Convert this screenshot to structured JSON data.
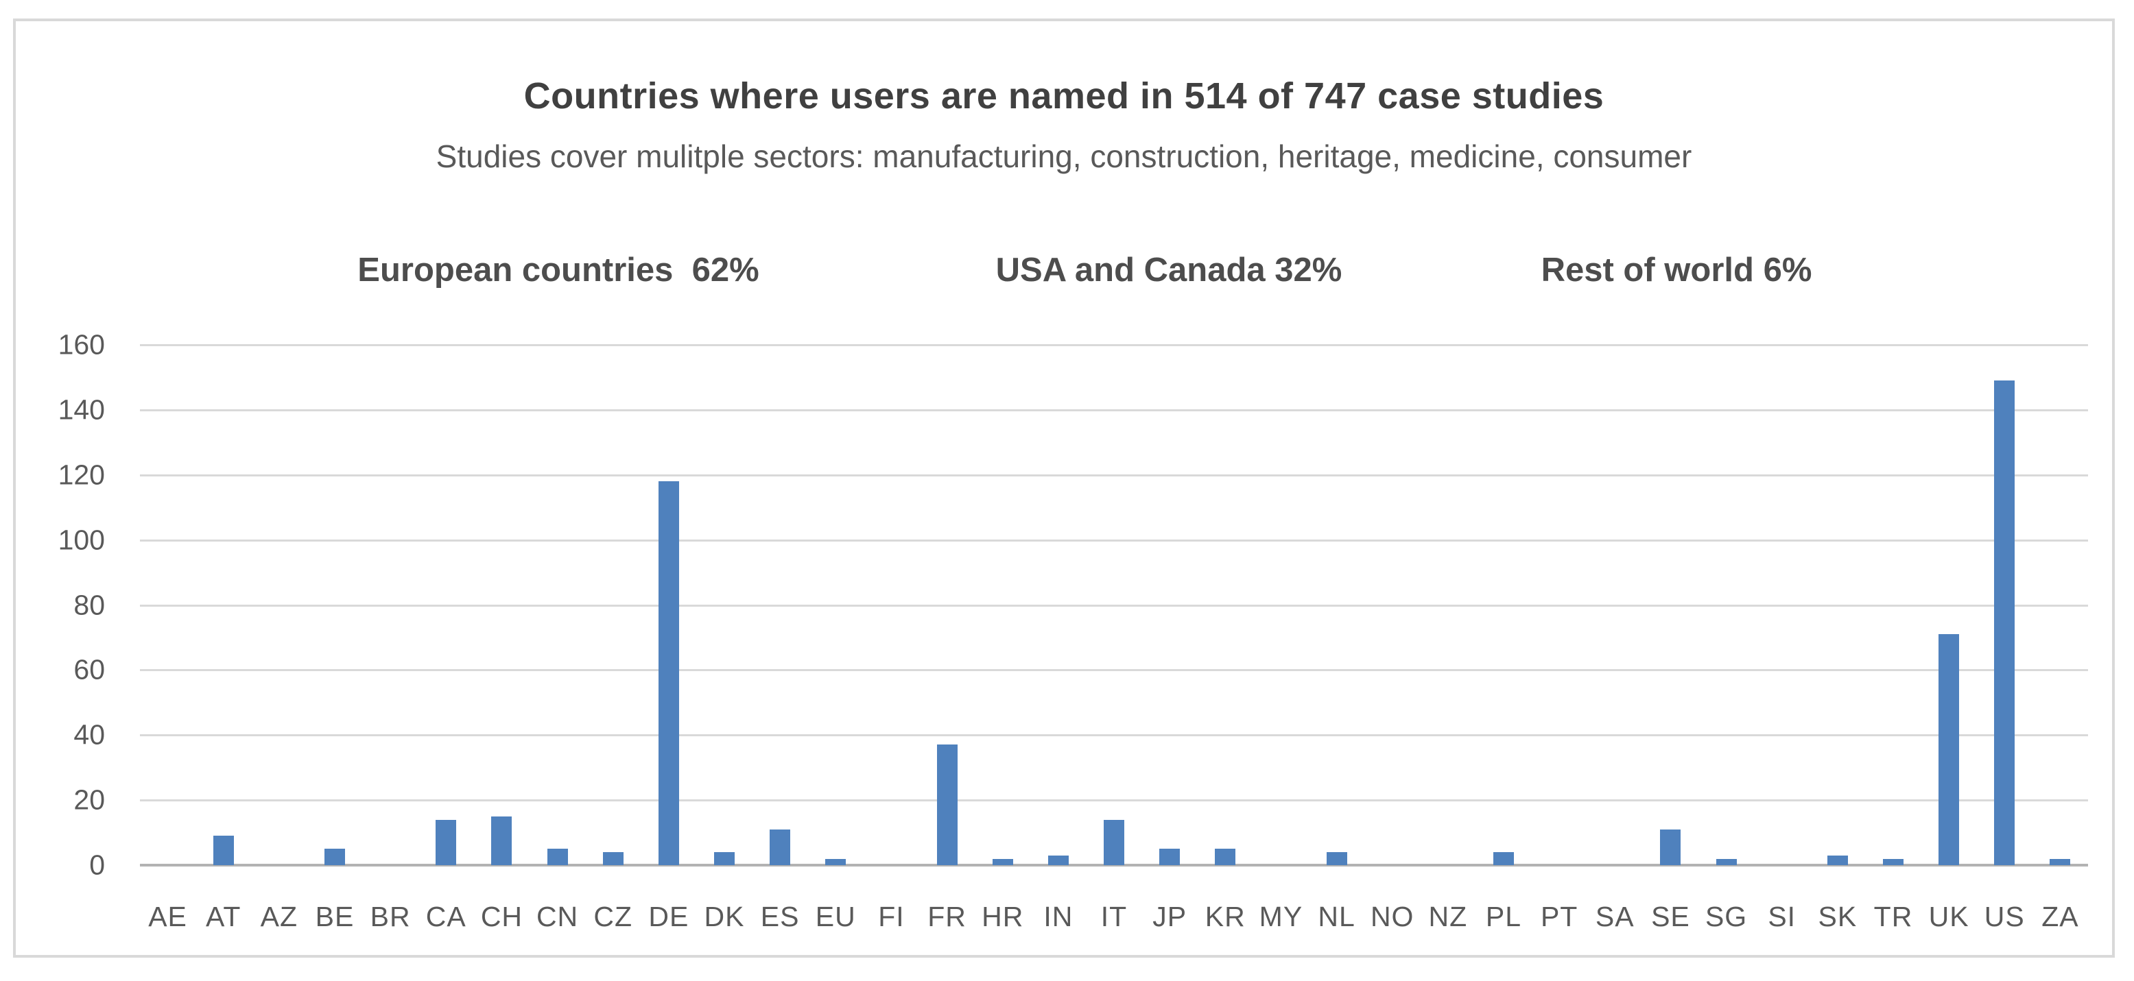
{
  "chart": {
    "title": "Countries where users are named in 514 of 747 case studies",
    "subtitle": "Studies cover mulitple sectors: manufacturing, construction, heritage, medicine, consumer",
    "group_labels": [
      {
        "label": "European countries  62%"
      },
      {
        "label": "USA and Canada 32%"
      },
      {
        "label": "Rest of world 6%"
      }
    ]
  },
  "chart_data": {
    "type": "bar",
    "title": "Countries where users are named in 514 of 747 case studies",
    "subtitle": "Studies cover mulitple sectors: manufacturing, construction, heritage, medicine, consumer",
    "annotations": [
      "European countries  62%",
      "USA and Canada 32%",
      "Rest of world 6%"
    ],
    "categories": [
      "AE",
      "AT",
      "AZ",
      "BE",
      "BR",
      "CA",
      "CH",
      "CN",
      "CZ",
      "DE",
      "DK",
      "ES",
      "EU",
      "FI",
      "FR",
      "HR",
      "IN",
      "IT",
      "JP",
      "KR",
      "MY",
      "NL",
      "NO",
      "NZ",
      "PL",
      "PT",
      "SA",
      "SE",
      "SG",
      "SI",
      "SK",
      "TR",
      "UK",
      "US",
      "ZA"
    ],
    "values": [
      0,
      9,
      0,
      5,
      0,
      14,
      15,
      5,
      4,
      118,
      4,
      11,
      2,
      0,
      37,
      2,
      3,
      14,
      5,
      5,
      0,
      4,
      0,
      0,
      4,
      0,
      0,
      11,
      2,
      0,
      3,
      2,
      71,
      149,
      2
    ],
    "xlabel": "",
    "ylabel": "",
    "ylim": [
      0,
      160
    ],
    "ytick_interval": 20,
    "yticks": [
      0,
      20,
      40,
      60,
      80,
      100,
      120,
      140,
      160
    ],
    "grid": true,
    "legend": false,
    "bar_color": "#4f81bd",
    "gridline_color": "#d9d9d9",
    "axis_line_color": "#b3b3b3",
    "text_color": "#595959",
    "title_color": "#404040"
  }
}
